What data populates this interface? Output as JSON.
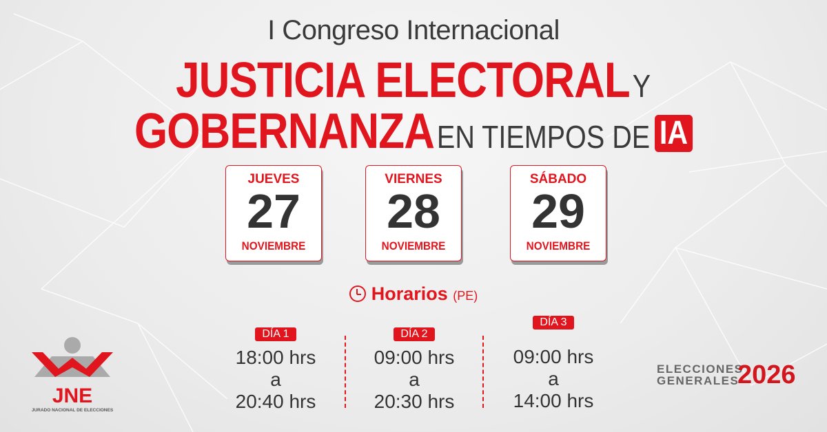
{
  "header": {
    "subtitle": "I Congreso Internacional",
    "line1_red": "JUSTICIA ELECTORAL",
    "line1_gray": "Y",
    "line2_red": "GOBERNANZA",
    "line2_gray": "EN TIEMPOS DE",
    "line2_badge": "IA"
  },
  "dates": [
    {
      "day": "JUEVES",
      "number": "27",
      "month": "NOVIEMBRE"
    },
    {
      "day": "VIERNES",
      "number": "28",
      "month": "NOVIEMBRE"
    },
    {
      "day": "SÁBADO",
      "number": "29",
      "month": "NOVIEMBRE"
    }
  ],
  "schedule": {
    "title": "Horarios",
    "timezone": "(PE)",
    "icon": "clock-icon",
    "days": [
      {
        "label": "DÍA 1",
        "start": "18:00 hrs",
        "sep": "a",
        "end": "20:40 hrs"
      },
      {
        "label": "DÍA 2",
        "start": "09:00 hrs",
        "sep": "a",
        "end": "20:30 hrs"
      },
      {
        "label": "DÍA 3",
        "start": "09:00 hrs",
        "sep": "a",
        "end": "14:00 hrs"
      }
    ]
  },
  "logo": {
    "acronym": "JNE",
    "name": "JURADO NACIONAL DE ELECCIONES"
  },
  "elections": {
    "line1": "ELECCIONES",
    "line2": "GENERALES",
    "year": "2026"
  },
  "colors": {
    "accent": "#e1151d",
    "text": "#3a3a3a",
    "background": "#efefef"
  }
}
